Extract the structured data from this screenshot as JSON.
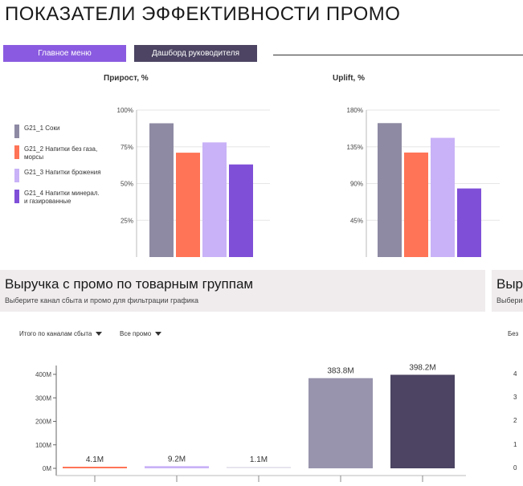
{
  "page": {
    "title": "ПОКАЗАТЕЛИ ЭФФЕКТИВНОСТИ ПРОМО"
  },
  "nav": {
    "main_menu": "Главное меню",
    "dashboard": "Дашборд руководителя"
  },
  "colors": {
    "accent": "#8a5be0",
    "dark_button": "#4c4462"
  },
  "legend": [
    {
      "label": "G21_1 Соки",
      "color": "#8e8aa3"
    },
    {
      "label": "G21_2 Напитки без газа, морсы",
      "color": "#ff7456"
    },
    {
      "label": "G21_3 Напитки брожения",
      "color": "#c9b2f7"
    },
    {
      "label": "G21_4 Напитки минерал. и газированные",
      "color": "#7f4fd8"
    }
  ],
  "section": {
    "title": "Выручка с промо по товарным группам",
    "subtitle": "Выберите канал сбыта и промо для фильтрации графика",
    "right_title_partial": "Выр",
    "right_subtitle_partial": "Выбери",
    "right_filter_partial": "Без"
  },
  "filters": {
    "channel": "Итого по каналам сбыта",
    "promo": "Все промо"
  },
  "right_ticks_partial": [
    "4",
    "3",
    "2",
    "1",
    "0"
  ],
  "chart_data": [
    {
      "type": "bar",
      "title": "Прирост, %",
      "categories": [
        "G21_1 Соки",
        "G21_2 Напитки без газа, морсы",
        "G21_3 Напитки брожения",
        "G21_4 Напитки минерал. и газированные"
      ],
      "values": [
        91,
        71,
        78,
        63
      ],
      "ylim": [
        0,
        100
      ],
      "yticks": [
        25,
        50,
        75,
        100
      ],
      "ytick_labels": [
        "25%",
        "50%",
        "75%",
        "100%"
      ],
      "colors": [
        "#8e8aa3",
        "#ff7456",
        "#c9b2f7",
        "#7f4fd8"
      ]
    },
    {
      "type": "bar",
      "title": "Uplift, %",
      "categories": [
        "G21_1 Соки",
        "G21_2 Напитки без газа, морсы",
        "G21_3 Напитки брожения",
        "G21_4 Напитки минерал. и газированные"
      ],
      "values": [
        164,
        128,
        146,
        84
      ],
      "ylim": [
        0,
        180
      ],
      "yticks": [
        45,
        90,
        135,
        180
      ],
      "ytick_labels": [
        "45%",
        "90%",
        "135%",
        "180%"
      ],
      "colors": [
        "#8e8aa3",
        "#ff7456",
        "#c9b2f7",
        "#7f4fd8"
      ]
    },
    {
      "type": "bar",
      "values": [
        4.1,
        9.2,
        1.1,
        383.8,
        398.2
      ],
      "value_labels": [
        "4.1M",
        "9.2M",
        "1.1M",
        "383.8M",
        "398.2M"
      ],
      "ylim": [
        0,
        400
      ],
      "yticks": [
        0,
        100,
        200,
        300,
        400
      ],
      "ytick_labels": [
        "0M",
        "100M",
        "200M",
        "300M",
        "400M"
      ],
      "colors": [
        "#ff7456",
        "#c9b2f7",
        "#e7e4ee",
        "#9994ad",
        "#4c4462"
      ]
    }
  ]
}
